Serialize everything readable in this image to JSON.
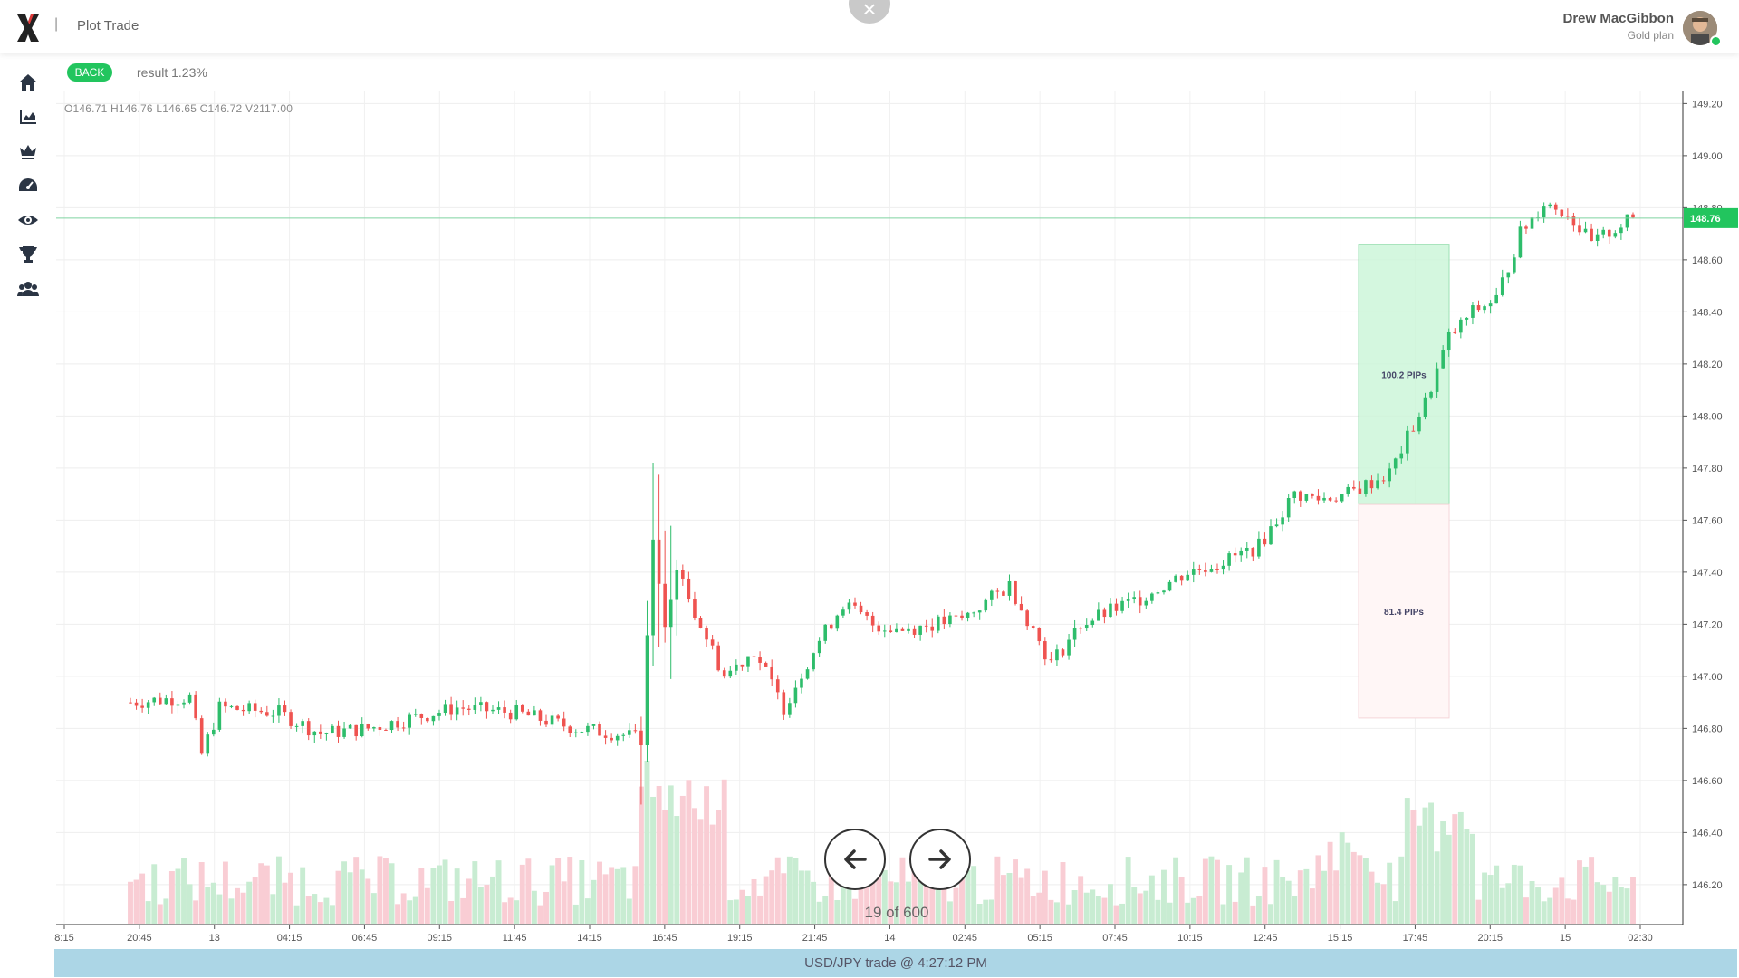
{
  "header": {
    "title": "Plot Trade",
    "separator": "|",
    "close_symbol": "×",
    "user_name": "Drew MacGibbon",
    "user_plan": "Gold plan"
  },
  "sidebar": {
    "items": [
      {
        "icon": "home-icon"
      },
      {
        "icon": "area-chart-icon"
      },
      {
        "icon": "crown-icon"
      },
      {
        "icon": "speedometer-icon"
      },
      {
        "icon": "eye-icon"
      },
      {
        "icon": "trophy-icon"
      },
      {
        "icon": "users-icon"
      }
    ]
  },
  "toolbar": {
    "back_label": "BACK",
    "result_text": "result 1.23%"
  },
  "ohlc": {
    "o_label": "O",
    "o": "146.71",
    "h_label": "H",
    "h": "146.76",
    "l_label": "L",
    "l": "146.65",
    "c_label": "C",
    "c": "146.72",
    "v_label": "V",
    "v": "2117.00"
  },
  "nav": {
    "counter": "19 of 600"
  },
  "footer": {
    "text": "USD/JPY trade @ 4:27:12 PM"
  },
  "colors": {
    "up": "#26a69a",
    "up_body": "#2ebd6b",
    "down": "#ef5350",
    "up_volume": "#c8ecd2",
    "down_volume": "#f9cdd4",
    "profit_zone": "#c9f5d7",
    "accent": "#22c55e",
    "footer_bg": "#acd6e6"
  },
  "chart_data": {
    "type": "candlestick",
    "symbol": "USD/JPY",
    "ylim": [
      146.05,
      149.25
    ],
    "y_ticks": [
      "149.20",
      "149.00",
      "148.80",
      "148.60",
      "148.40",
      "148.20",
      "148.00",
      "147.80",
      "147.60",
      "147.40",
      "147.20",
      "147.00",
      "146.80",
      "146.60",
      "146.40",
      "146.20"
    ],
    "x_ticks": [
      "8:15",
      "20:45",
      "13",
      "04:15",
      "06:45",
      "09:15",
      "11:45",
      "14:15",
      "16:45",
      "19:15",
      "21:45",
      "14",
      "02:45",
      "05:15",
      "07:45",
      "10:15",
      "12:45",
      "15:15",
      "17:45",
      "20:15",
      "15",
      "02:30"
    ],
    "current_price": 148.76,
    "current_price_label": "148.76",
    "take_profit_label": "100.2 PIPs",
    "stop_loss_label": "81.4 PIPs",
    "entry_price": 147.66,
    "take_profit_price": 148.66,
    "stop_loss_price": 146.84,
    "close_anchors": [
      [
        0,
        146.9
      ],
      [
        10,
        146.92
      ],
      [
        12,
        146.7
      ],
      [
        15,
        146.88
      ],
      [
        25,
        146.86
      ],
      [
        32,
        146.78
      ],
      [
        40,
        146.8
      ],
      [
        55,
        146.88
      ],
      [
        65,
        146.86
      ],
      [
        75,
        146.8
      ],
      [
        82,
        146.78
      ],
      [
        86,
        146.76
      ],
      [
        88,
        147.5
      ],
      [
        90,
        147.2
      ],
      [
        92,
        147.4
      ],
      [
        95,
        147.25
      ],
      [
        100,
        147.0
      ],
      [
        105,
        147.1
      ],
      [
        110,
        146.88
      ],
      [
        115,
        147.1
      ],
      [
        120,
        147.28
      ],
      [
        125,
        147.2
      ],
      [
        130,
        147.18
      ],
      [
        140,
        147.22
      ],
      [
        148,
        147.35
      ],
      [
        152,
        147.18
      ],
      [
        155,
        147.05
      ],
      [
        160,
        147.2
      ],
      [
        170,
        147.3
      ],
      [
        178,
        147.4
      ],
      [
        185,
        147.45
      ],
      [
        190,
        147.5
      ],
      [
        196,
        147.7
      ],
      [
        200,
        147.68
      ],
      [
        205,
        147.7
      ],
      [
        212,
        147.78
      ],
      [
        218,
        148.05
      ],
      [
        222,
        148.3
      ],
      [
        226,
        148.4
      ],
      [
        230,
        148.45
      ],
      [
        234,
        148.7
      ],
      [
        238,
        148.82
      ],
      [
        242,
        148.78
      ],
      [
        246,
        148.66
      ],
      [
        250,
        148.72
      ],
      [
        253,
        148.76
      ]
    ]
  }
}
